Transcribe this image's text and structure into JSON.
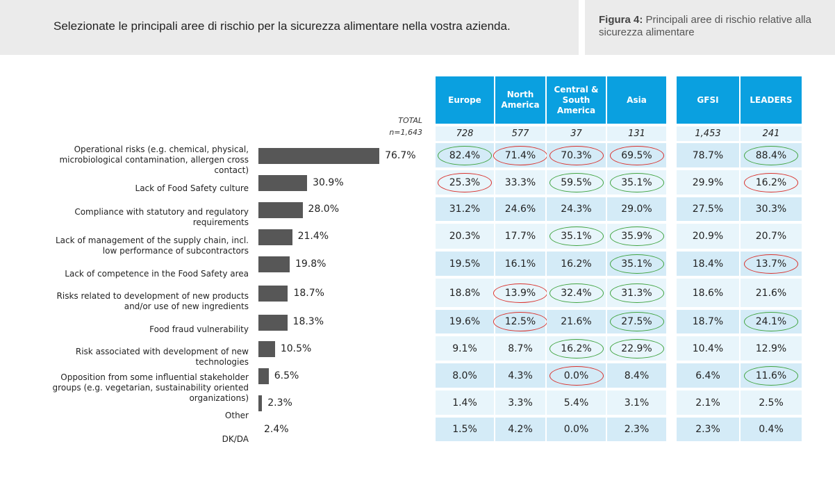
{
  "question": "Selezionate le principali aree di rischio per la sicurezza alimentare nella vostra azienda.",
  "figure": {
    "label": "Figura 4:",
    "text": "Principali aree di rischio relative alla sicurezza alimentare"
  },
  "total": {
    "label": "TOTAL",
    "n": "n=1,643"
  },
  "colors": {
    "bar": "#575757",
    "header": "#0aa0e0",
    "green_oval": "#3fa33f",
    "red_oval": "#d9302b"
  },
  "chart_data": {
    "type": "bar",
    "orientation": "horizontal",
    "categories": [
      "Operational risks (e.g. chemical, physical, microbiological contamination, allergen cross contact)",
      "Lack of Food Safety culture",
      "Compliance with statutory and regulatory requirements",
      "Lack of management of the supply chain, incl. low performance of subcontractors",
      "Lack of competence in the Food Safety area",
      "Risks related to development of new products and/or use of new ingredients",
      "Food fraud vulnerability",
      "Risk associated with development of new technologies",
      "Opposition from some influential stakeholder groups (e.g. vegetarian, sustainability oriented organizations)",
      "Other",
      "DK/DA"
    ],
    "values": [
      76.7,
      30.9,
      28.0,
      21.4,
      19.8,
      18.7,
      18.3,
      10.5,
      6.5,
      2.3,
      2.4
    ],
    "value_labels": [
      "76.7%",
      "30.9%",
      "28.0%",
      "21.4%",
      "19.8%",
      "18.7%",
      "18.3%",
      "10.5%",
      "6.5%",
      "2.3%",
      "2.4%"
    ],
    "bar_drawn": [
      true,
      true,
      true,
      true,
      true,
      true,
      true,
      true,
      true,
      true,
      false
    ]
  },
  "table": {
    "columns": [
      {
        "label": "Europe",
        "n": "728"
      },
      {
        "label": "North America",
        "n": "577"
      },
      {
        "label": "Central & South America",
        "n": "37"
      },
      {
        "label": "Asia",
        "n": "131"
      },
      {
        "label": "GFSI",
        "n": "1,453"
      },
      {
        "label": "LEADERS",
        "n": "241"
      }
    ],
    "rows": [
      [
        "82.4%",
        "71.4%",
        "70.3%",
        "69.5%",
        "78.7%",
        "88.4%"
      ],
      [
        "25.3%",
        "33.3%",
        "59.5%",
        "35.1%",
        "29.9%",
        "16.2%"
      ],
      [
        "31.2%",
        "24.6%",
        "24.3%",
        "29.0%",
        "27.5%",
        "30.3%"
      ],
      [
        "20.3%",
        "17.7%",
        "35.1%",
        "35.9%",
        "20.9%",
        "20.7%"
      ],
      [
        "19.5%",
        "16.1%",
        "16.2%",
        "35.1%",
        "18.4%",
        "13.7%"
      ],
      [
        "18.8%",
        "13.9%",
        "32.4%",
        "31.3%",
        "18.6%",
        "21.6%"
      ],
      [
        "19.6%",
        "12.5%",
        "21.6%",
        "27.5%",
        "18.7%",
        "24.1%"
      ],
      [
        "9.1%",
        "8.7%",
        "16.2%",
        "22.9%",
        "10.4%",
        "12.9%"
      ],
      [
        "8.0%",
        "4.3%",
        "0.0%",
        "8.4%",
        "6.4%",
        "11.6%"
      ],
      [
        "1.4%",
        "3.3%",
        "5.4%",
        "3.1%",
        "2.1%",
        "2.5%"
      ],
      [
        "1.5%",
        "4.2%",
        "0.0%",
        "2.3%",
        "2.3%",
        "0.4%"
      ]
    ],
    "highlights": [
      [
        "green",
        "red",
        "red",
        "red",
        "",
        "green"
      ],
      [
        "red",
        "",
        "green",
        "green",
        "",
        "red"
      ],
      [
        "",
        "",
        "",
        "",
        "",
        ""
      ],
      [
        "",
        "",
        "green",
        "green",
        "",
        ""
      ],
      [
        "",
        "",
        "",
        "green",
        "",
        "red"
      ],
      [
        "",
        "red",
        "green",
        "green",
        "",
        ""
      ],
      [
        "",
        "red",
        "",
        "green",
        "",
        "green"
      ],
      [
        "",
        "",
        "green",
        "green",
        "",
        ""
      ],
      [
        "",
        "",
        "red",
        "",
        "",
        "green"
      ],
      [
        "",
        "",
        "",
        "",
        "",
        ""
      ],
      [
        "",
        "",
        "",
        "",
        "",
        ""
      ]
    ]
  }
}
